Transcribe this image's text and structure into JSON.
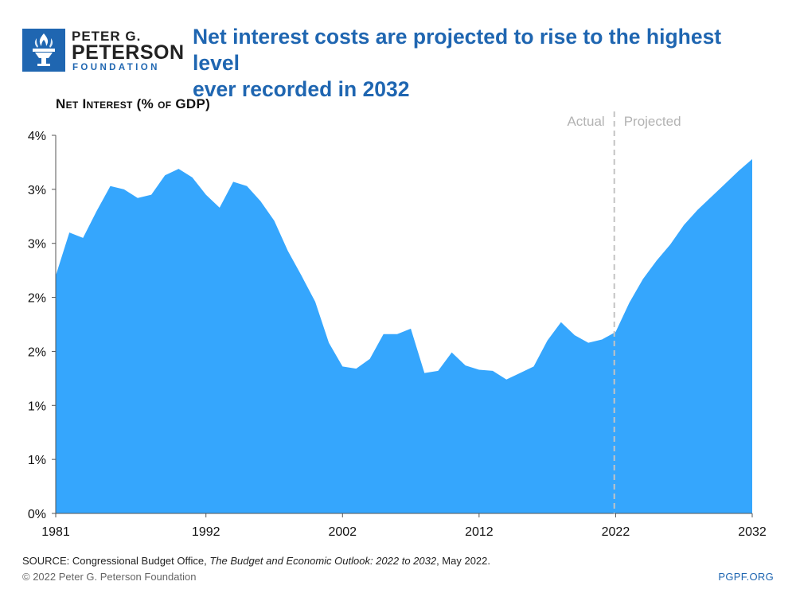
{
  "brand": {
    "line1": "PETER G.",
    "line2": "PETERSON",
    "line3": "FOUNDATION",
    "color": "#1f66b1"
  },
  "headline": {
    "line1": "Net interest costs are projected to rise to the highest level",
    "line2": "ever recorded in 2032"
  },
  "footer": {
    "source_prefix": "SOURCE: Congressional Budget Office, ",
    "source_title": "The Budget and Economic Outlook: 2022 to 2032",
    "source_suffix": ", May 2022.",
    "copyright": "© 2022 Peter G. Peterson Foundation",
    "site": "PGPF.ORG"
  },
  "chart_data": {
    "type": "area",
    "title": "Net Interest (% of GDP)",
    "xlabel": "",
    "ylabel": "",
    "xlim": [
      1981,
      2032
    ],
    "ylim": [
      0,
      3.5
    ],
    "y_ticks": [
      0,
      0.5,
      1.0,
      1.5,
      2.0,
      2.5,
      3.0,
      3.5
    ],
    "y_tick_labels": [
      "0%",
      "1%",
      "1%",
      "2%",
      "2%",
      "3%",
      "3%",
      "4%"
    ],
    "x_ticks": [
      1981,
      1992,
      2002,
      2012,
      2022,
      2032
    ],
    "x_tick_labels": [
      "1981",
      "1992",
      "2002",
      "2012",
      "2022",
      "2032"
    ],
    "fill_color": "#35a6fd",
    "divider": {
      "x": 2021.9,
      "left_label": "Actual",
      "right_label": "Projected"
    },
    "series": [
      {
        "name": "Net interest (% of GDP)",
        "x": [
          1981,
          1982,
          1983,
          1984,
          1985,
          1986,
          1987,
          1988,
          1989,
          1990,
          1991,
          1992,
          1993,
          1994,
          1995,
          1996,
          1997,
          1998,
          1999,
          2000,
          2001,
          2002,
          2003,
          2004,
          2005,
          2006,
          2007,
          2008,
          2009,
          2010,
          2011,
          2012,
          2013,
          2014,
          2015,
          2016,
          2017,
          2018,
          2019,
          2020,
          2021,
          2022,
          2023,
          2024,
          2025,
          2026,
          2027,
          2028,
          2029,
          2030,
          2031,
          2032
        ],
        "values": [
          2.2,
          2.6,
          2.55,
          2.8,
          3.03,
          3.0,
          2.92,
          2.95,
          3.13,
          3.19,
          3.11,
          2.95,
          2.83,
          3.07,
          3.03,
          2.89,
          2.71,
          2.43,
          2.2,
          1.96,
          1.58,
          1.36,
          1.34,
          1.43,
          1.66,
          1.66,
          1.71,
          1.3,
          1.32,
          1.49,
          1.37,
          1.33,
          1.32,
          1.24,
          1.3,
          1.36,
          1.6,
          1.77,
          1.65,
          1.58,
          1.61,
          1.68,
          1.95,
          2.17,
          2.34,
          2.49,
          2.67,
          2.81,
          2.93,
          3.05,
          3.17,
          3.28
        ]
      }
    ]
  }
}
